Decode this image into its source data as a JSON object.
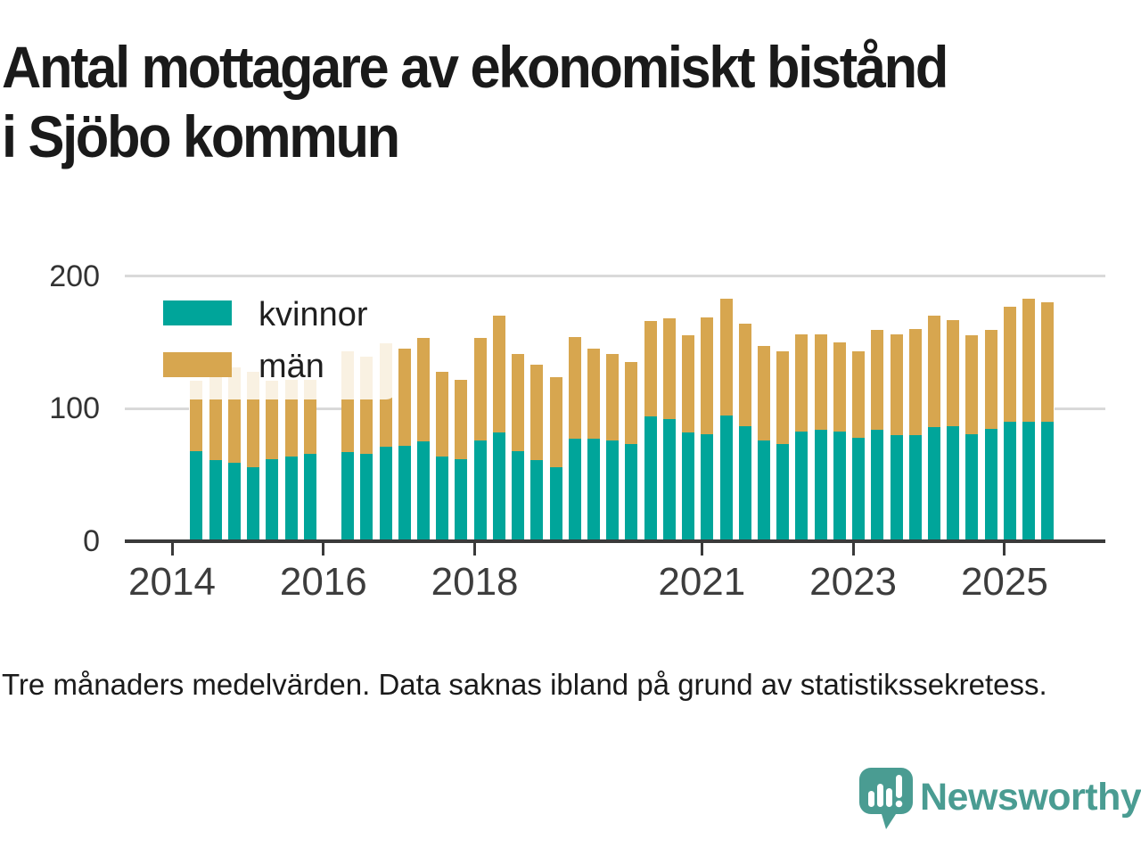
{
  "title": {
    "line1": "Antal mottagare av ekonomiskt bistånd",
    "line2": "i Sjöbo kommun"
  },
  "footnote": "Tre månaders medelvärden. Data saknas ibland på grund av statistikssekretess.",
  "brand": {
    "name": "Newsworthy",
    "icon": "newsworthy-speech-bubble-barchart-icon",
    "color": "#4a9c92"
  },
  "legend": {
    "items": [
      {
        "label": "kvinnor",
        "color": "#00a59a"
      },
      {
        "label": "män",
        "color": "#d7a64f"
      }
    ]
  },
  "colors": {
    "kvinnor": "#00a59a",
    "man": "#d7a64f",
    "grid": "#d9d9d9",
    "axis": "#3a3a3a",
    "text": "#1a1a1a"
  },
  "chart_data": {
    "type": "bar",
    "stacked": true,
    "title": "Antal mottagare av ekonomiskt bistånd i Sjöbo kommun",
    "xlabel": "",
    "ylabel": "",
    "ylim": [
      0,
      200
    ],
    "y_ticks": [
      0,
      100,
      200
    ],
    "x_tick_years": [
      "2014",
      "2016",
      "2018",
      "2021",
      "2023",
      "2025"
    ],
    "grid": "horizontal",
    "legend_position": "upper-left",
    "note": "Quarterly bars (three-month averages); 2016 Q1 missing due to statistical confidentiality",
    "categories": [
      "2014 Q2",
      "2014 Q3",
      "2014 Q4",
      "2015 Q1",
      "2015 Q2",
      "2015 Q3",
      "2015 Q4",
      "2016 Q1",
      "2016 Q2",
      "2016 Q3",
      "2016 Q4",
      "2017 Q1",
      "2017 Q2",
      "2017 Q3",
      "2017 Q4",
      "2018 Q1",
      "2018 Q2",
      "2018 Q3",
      "2018 Q4",
      "2019 Q1",
      "2019 Q2",
      "2019 Q3",
      "2019 Q4",
      "2020 Q1",
      "2020 Q2",
      "2020 Q3",
      "2020 Q4",
      "2021 Q1",
      "2021 Q2",
      "2021 Q3",
      "2021 Q4",
      "2022 Q1",
      "2022 Q2",
      "2022 Q3",
      "2022 Q4",
      "2023 Q1",
      "2023 Q2",
      "2023 Q3",
      "2023 Q4",
      "2024 Q1",
      "2024 Q2",
      "2024 Q3",
      "2024 Q4",
      "2025 Q1",
      "2025 Q2",
      "2025 Q3"
    ],
    "missing": [
      "2016 Q1"
    ],
    "series": [
      {
        "name": "kvinnor",
        "color": "#00a59a",
        "values": [
          68,
          61,
          59,
          56,
          62,
          64,
          66,
          null,
          67,
          66,
          71,
          72,
          75,
          64,
          62,
          76,
          82,
          68,
          61,
          56,
          77,
          77,
          76,
          73,
          94,
          92,
          82,
          81,
          95,
          87,
          76,
          73,
          83,
          84,
          83,
          78,
          84,
          80,
          80,
          86,
          87,
          81,
          85,
          90,
          90,
          90
        ]
      },
      {
        "name": "män",
        "color": "#d7a64f",
        "values": [
          53,
          63,
          72,
          72,
          59,
          58,
          56,
          null,
          76,
          73,
          78,
          73,
          78,
          64,
          60,
          77,
          88,
          73,
          72,
          68,
          77,
          68,
          65,
          62,
          72,
          76,
          73,
          88,
          88,
          77,
          71,
          70,
          73,
          72,
          67,
          65,
          75,
          76,
          80,
          84,
          80,
          74,
          74,
          87,
          93,
          90
        ]
      }
    ]
  }
}
